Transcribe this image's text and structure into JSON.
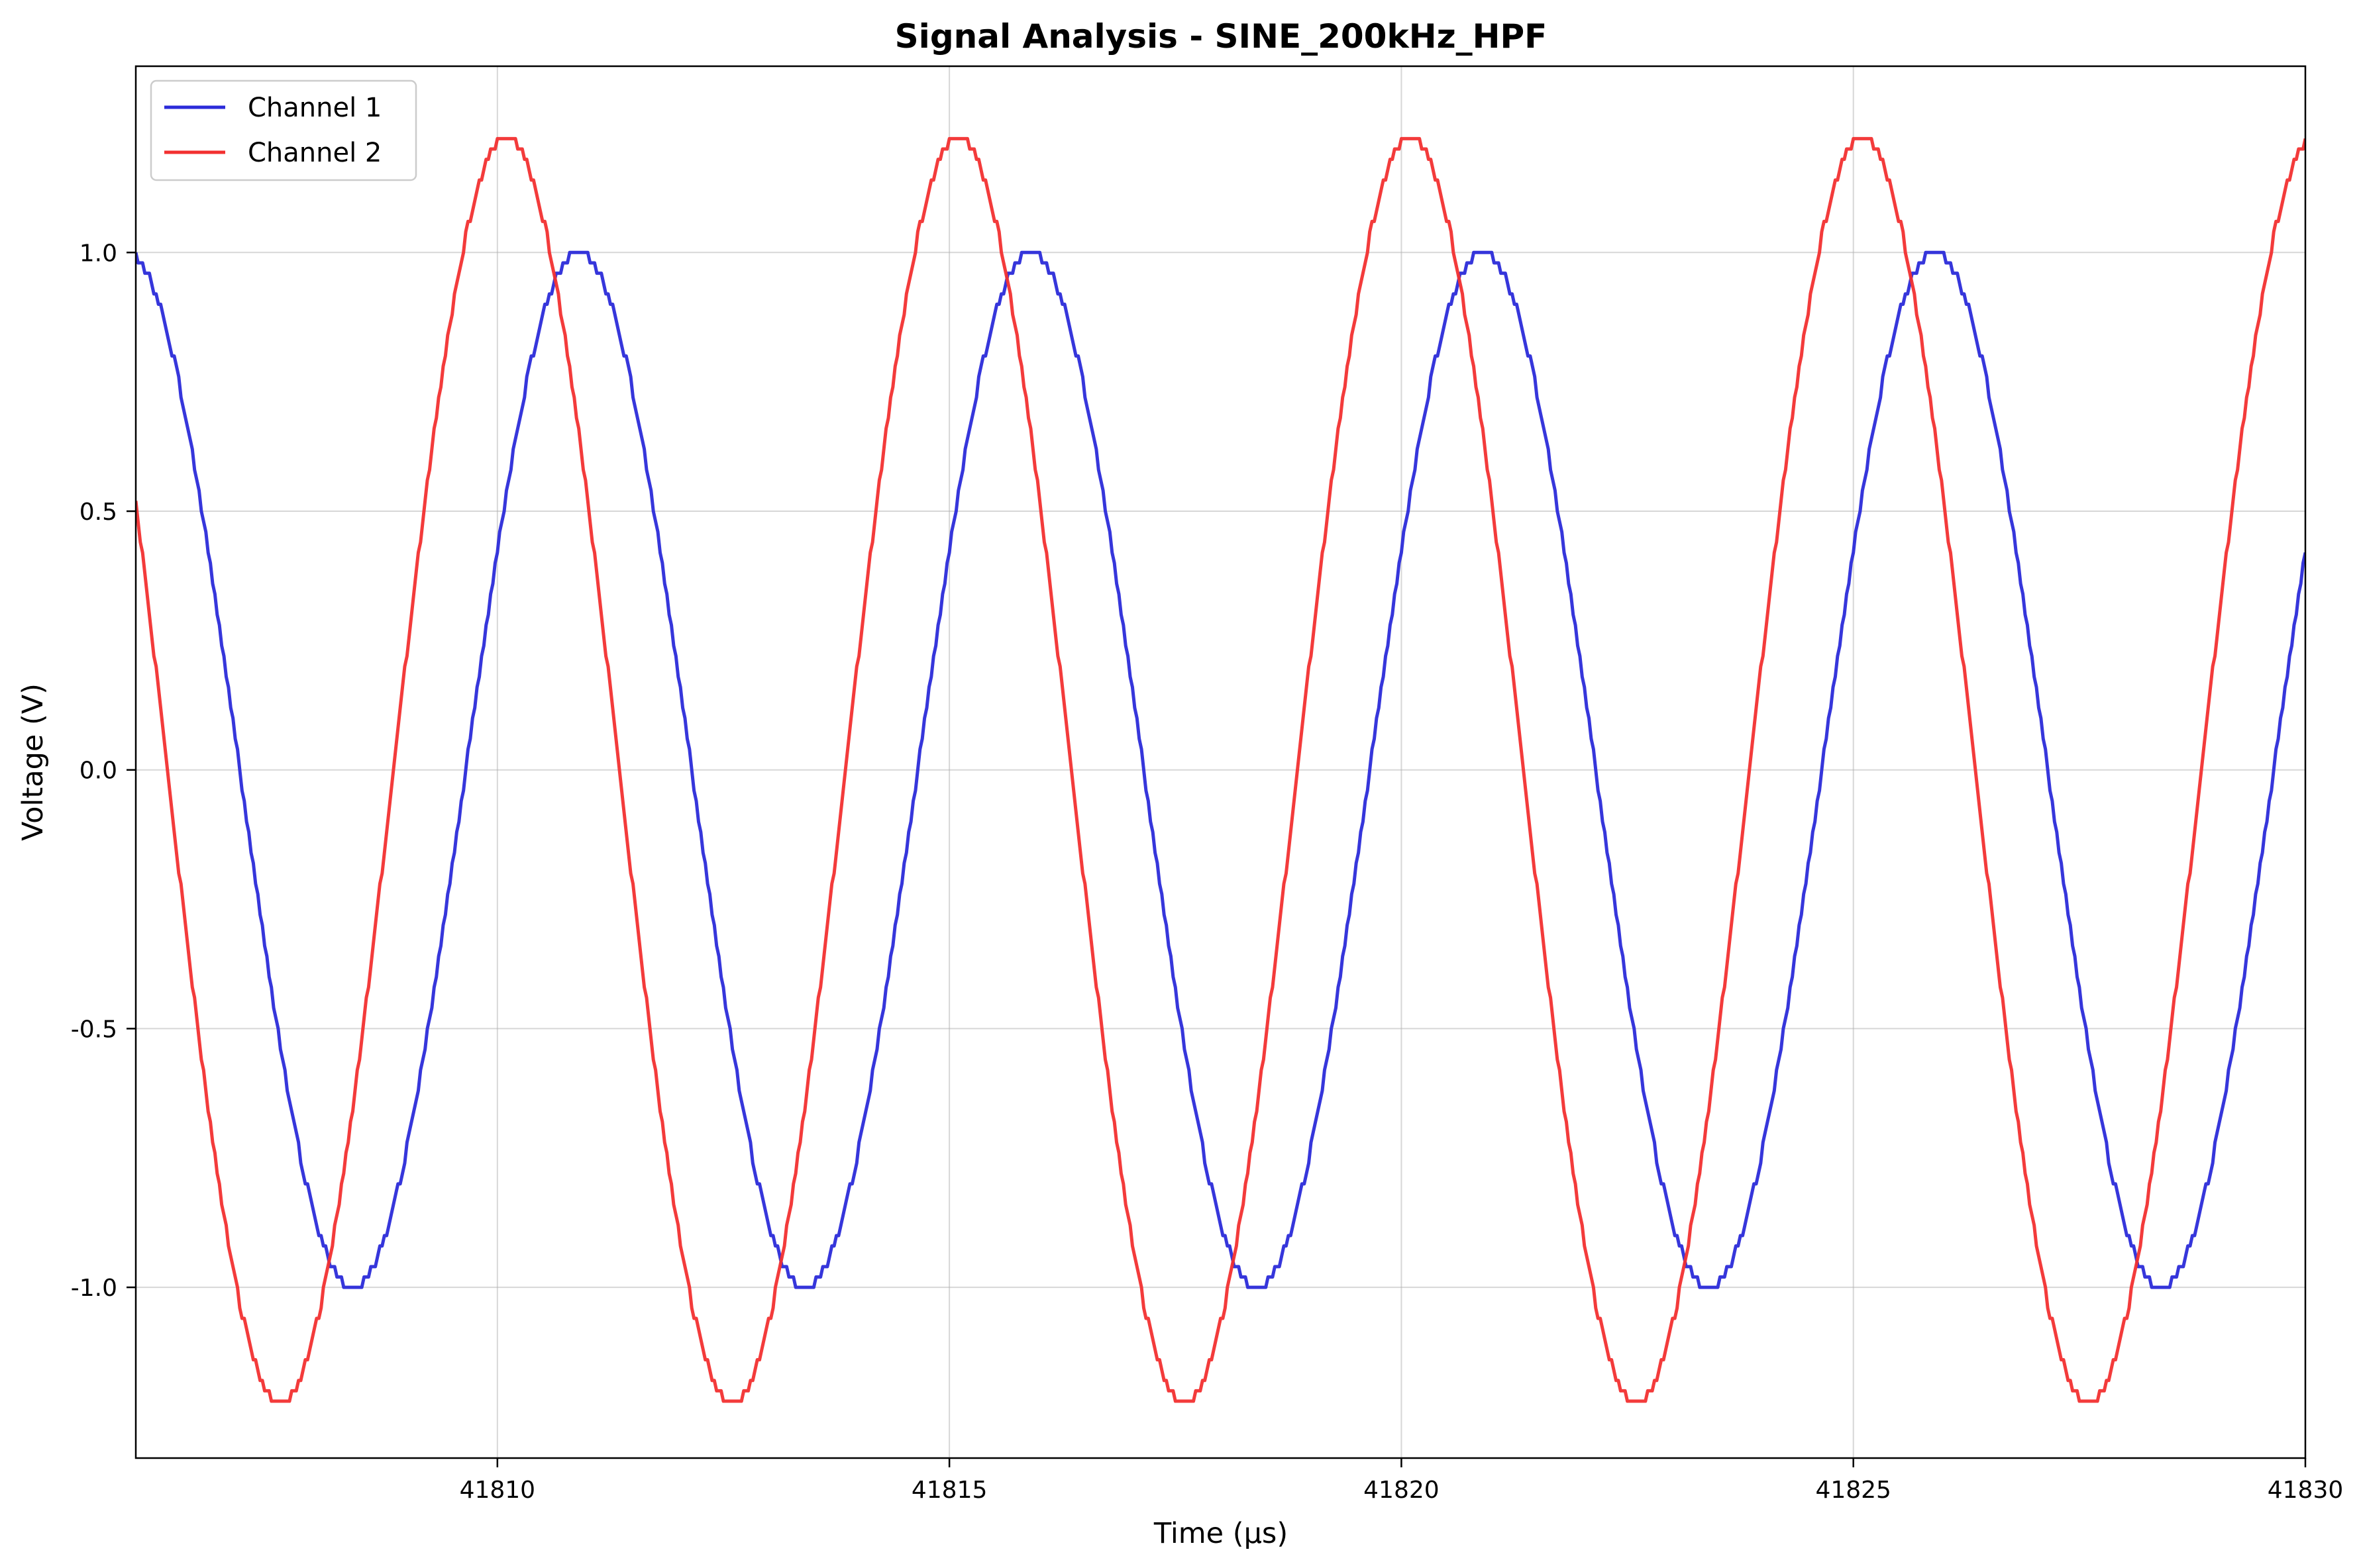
{
  "chart_data": {
    "type": "line",
    "title": "Signal Analysis - SINE_200kHz_HPF",
    "xlabel": "Time (µs)",
    "ylabel": "Voltage (V)",
    "xlim": [
      41806.0,
      41830.0
    ],
    "ylim": [
      -1.33,
      1.36
    ],
    "grid": true,
    "legend_position": "top-left",
    "x_ticks": [
      41810,
      41815,
      41820,
      41825,
      41830
    ],
    "x_tick_labels": [
      "41810",
      "41815",
      "41820",
      "41825",
      "41830"
    ],
    "y_ticks": [
      1.0,
      0.5,
      0.0,
      -0.5,
      -1.0
    ],
    "y_tick_labels": [
      "1.0",
      "0.5",
      "0.0",
      "-0.5",
      "-1.0"
    ],
    "series": [
      {
        "name": "Channel 1",
        "color": "#2b2bd9",
        "waveform": "sine",
        "frequency_khz": 200,
        "amplitude_v": 1.0,
        "peak_time_us": 41810.9,
        "x_start": 41806.0,
        "x_end": 41830.0,
        "samples_per_us": 40,
        "quantization_v": 0.02
      },
      {
        "name": "Channel 2",
        "color": "#f23030",
        "waveform": "sine",
        "frequency_khz": 200,
        "amplitude_v": 1.22,
        "peak_time_us": 41810.1,
        "x_start": 41806.0,
        "x_end": 41830.0,
        "samples_per_us": 40,
        "quantization_v": 0.02
      }
    ]
  }
}
